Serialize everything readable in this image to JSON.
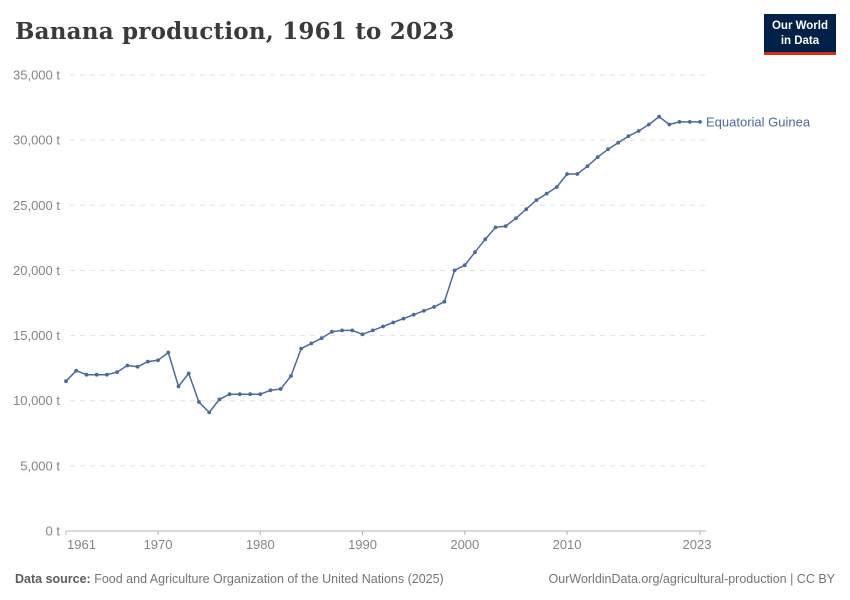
{
  "header": {
    "title": "Banana production, 1961 to 2023",
    "logo": {
      "line1": "Our World",
      "line2": "in Data"
    }
  },
  "colors": {
    "line": "#4c6a9c",
    "entity_label": "#4c6a9c",
    "grid": "#e2e2e2",
    "axis": "#b3b3b3",
    "tick_label": "#858585",
    "logo_bg": "#002147",
    "logo_accent": "#dc2a17"
  },
  "chart_data": {
    "type": "line",
    "title": "Banana production, 1961 to 2023",
    "unit": "t",
    "grid": true,
    "legend_position": "end-of-line",
    "entity": "Equatorial Guinea",
    "xlabel": "",
    "ylabel": "",
    "ylim": [
      0,
      35000
    ],
    "yticks": [
      0,
      5000,
      10000,
      15000,
      20000,
      25000,
      30000,
      35000
    ],
    "xticks": [
      1961,
      1970,
      1980,
      1990,
      2000,
      2010,
      2023
    ],
    "x": [
      1961,
      1962,
      1963,
      1964,
      1965,
      1966,
      1967,
      1968,
      1969,
      1970,
      1971,
      1972,
      1973,
      1974,
      1975,
      1976,
      1977,
      1978,
      1979,
      1980,
      1981,
      1982,
      1983,
      1984,
      1985,
      1986,
      1987,
      1988,
      1989,
      1990,
      1991,
      1992,
      1993,
      1994,
      1995,
      1996,
      1997,
      1998,
      1999,
      2000,
      2001,
      2002,
      2003,
      2004,
      2005,
      2006,
      2007,
      2008,
      2009,
      2010,
      2011,
      2012,
      2013,
      2014,
      2015,
      2016,
      2017,
      2018,
      2019,
      2020,
      2021,
      2022,
      2023
    ],
    "series": [
      {
        "name": "Equatorial Guinea",
        "values": [
          11500,
          12300,
          12000,
          12000,
          12000,
          12200,
          12700,
          12600,
          13000,
          13100,
          13700,
          11100,
          12100,
          9900,
          9100,
          10100,
          10500,
          10500,
          10500,
          10500,
          10800,
          10900,
          11900,
          14000,
          14400,
          14800,
          15300,
          15400,
          15400,
          15100,
          15400,
          15700,
          16000,
          16300,
          16600,
          16900,
          17200,
          17600,
          20000,
          20400,
          21400,
          22400,
          23300,
          23400,
          24000,
          24700,
          25400,
          25900,
          26400,
          27400,
          27400,
          28000,
          28700,
          29300,
          29800,
          30300,
          30700,
          31200,
          31800,
          31200,
          31400,
          31400,
          31400
        ]
      }
    ]
  },
  "footer": {
    "source_label": "Data source:",
    "source_text": " Food and Agriculture Organization of the United Nations (2025)",
    "credit_text": "OurWorldinData.org/agricultural-production | CC BY"
  }
}
